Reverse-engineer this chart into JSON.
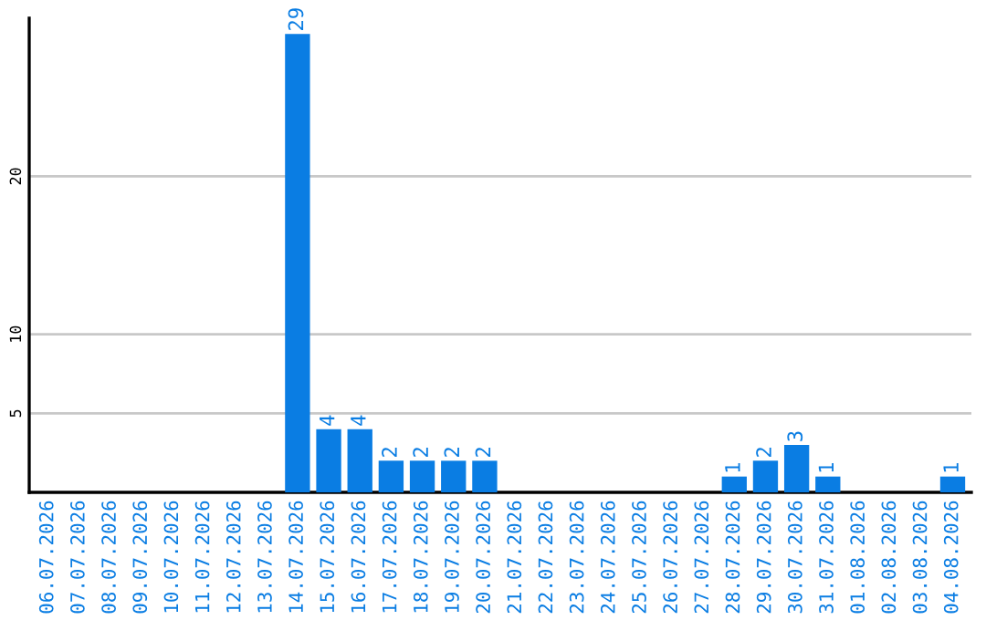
{
  "chart_data": {
    "type": "bar",
    "categories": [
      "06.07.2026",
      "07.07.2026",
      "08.07.2026",
      "09.07.2026",
      "10.07.2026",
      "11.07.2026",
      "12.07.2026",
      "13.07.2026",
      "14.07.2026",
      "15.07.2026",
      "16.07.2026",
      "17.07.2026",
      "18.07.2026",
      "19.07.2026",
      "20.07.2026",
      "21.07.2026",
      "22.07.2026",
      "23.07.2026",
      "24.07.2026",
      "25.07.2026",
      "26.07.2026",
      "27.07.2026",
      "28.07.2026",
      "29.07.2026",
      "30.07.2026",
      "31.07.2026",
      "01.08.2026",
      "02.08.2026",
      "03.08.2026",
      "04.08.2026"
    ],
    "values": [
      0,
      0,
      0,
      0,
      0,
      0,
      0,
      0,
      29,
      4,
      4,
      2,
      2,
      2,
      2,
      0,
      0,
      0,
      0,
      0,
      0,
      0,
      1,
      2,
      3,
      1,
      0,
      0,
      0,
      1
    ],
    "value_labels": [
      null,
      null,
      null,
      null,
      null,
      null,
      null,
      null,
      "29",
      "4",
      "4",
      "2",
      "2",
      "2",
      "2",
      null,
      null,
      null,
      null,
      null,
      null,
      null,
      "1",
      "2",
      "3",
      "1",
      null,
      null,
      null,
      "1"
    ],
    "color": "#0a7de3",
    "ylim": [
      0,
      30
    ],
    "yticks": [
      5,
      10,
      20
    ],
    "grid": "y",
    "legend": false
  }
}
